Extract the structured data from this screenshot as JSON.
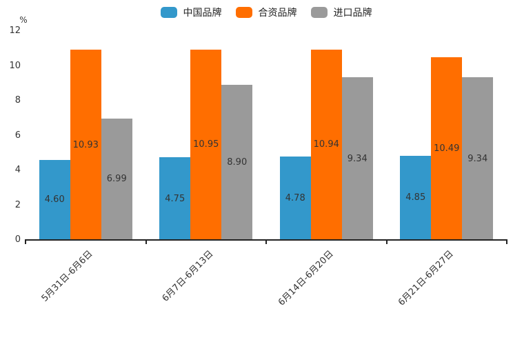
{
  "chart_data": {
    "type": "bar",
    "title": "",
    "ylabel": "%",
    "xlabel": "",
    "legend_position": "top",
    "grid": false,
    "value_label_position": "inside-center",
    "value_label_decimals": 2,
    "categories": [
      "5月31日-6月6日",
      "6月7日-6月13日",
      "6月14日-6月20日",
      "6月21日-6月27日"
    ],
    "series": [
      {
        "name": "中国品牌",
        "color": "#3398CB",
        "values": [
          4.6,
          4.75,
          4.78,
          4.85
        ]
      },
      {
        "name": "合资品牌",
        "color": "#FF6E00",
        "values": [
          10.93,
          10.95,
          10.94,
          10.49
        ]
      },
      {
        "name": "进口品牌",
        "color": "#9A9A9A",
        "values": [
          6.99,
          8.9,
          9.34,
          9.34
        ]
      }
    ],
    "ylim": [
      0,
      12
    ],
    "yticks": [
      0,
      2,
      4,
      6,
      8,
      10,
      12
    ]
  },
  "colors": {
    "axis": "#222222",
    "tick_text": "#333333",
    "value_text": "#333333",
    "legend_text": "#222222",
    "background": "#ffffff"
  }
}
